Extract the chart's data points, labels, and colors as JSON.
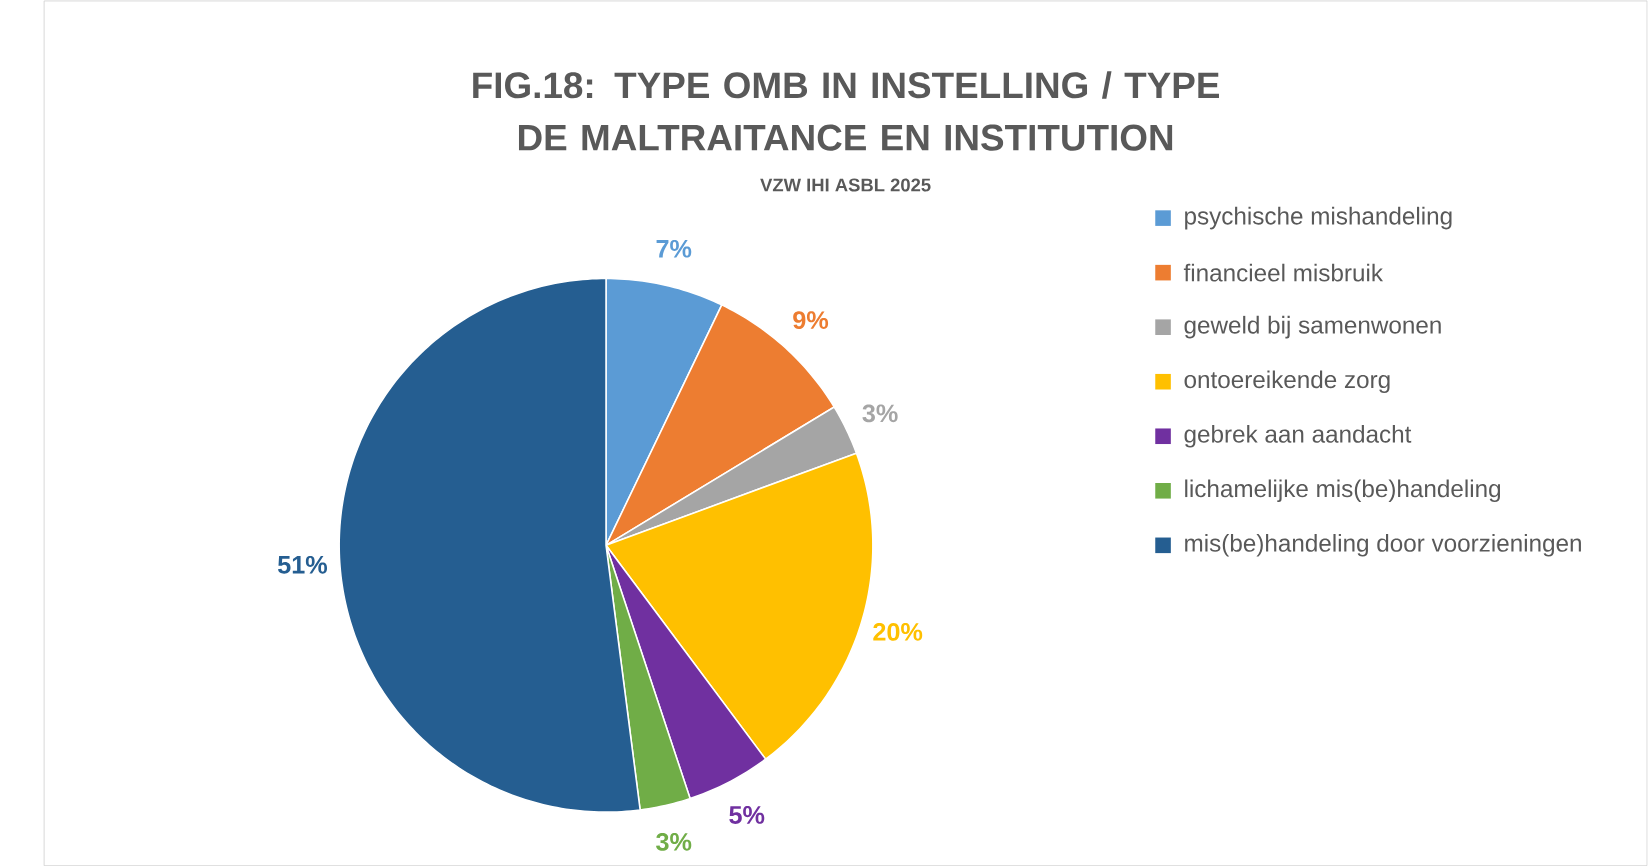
{
  "chart_data": {
    "type": "pie",
    "title": "FIG.18: TYPE OMB IN INSTELLING / TYPE DE MALTRAITANCE EN INSTITUTION",
    "subtitle": "VZW IHI ASBL 2025",
    "categories": [
      "psychische mishandeling",
      "financieel misbruik",
      "geweld bij samenwonen",
      "ontoereikende zorg",
      "gebrek aan aandacht",
      "lichamelijke mis(be)handeling",
      "mis(be)handeling door voorzieningen"
    ],
    "values": [
      7,
      9,
      3,
      20,
      5,
      3,
      51
    ],
    "value_labels": [
      "7%",
      "9%",
      "3%",
      "20%",
      "5%",
      "3%",
      "51%"
    ],
    "colors": [
      "#5b9bd5",
      "#ed7d31",
      "#a5a5a5",
      "#ffc000",
      "#7030a0",
      "#70ad47",
      "#255e91"
    ],
    "legend": "right"
  }
}
